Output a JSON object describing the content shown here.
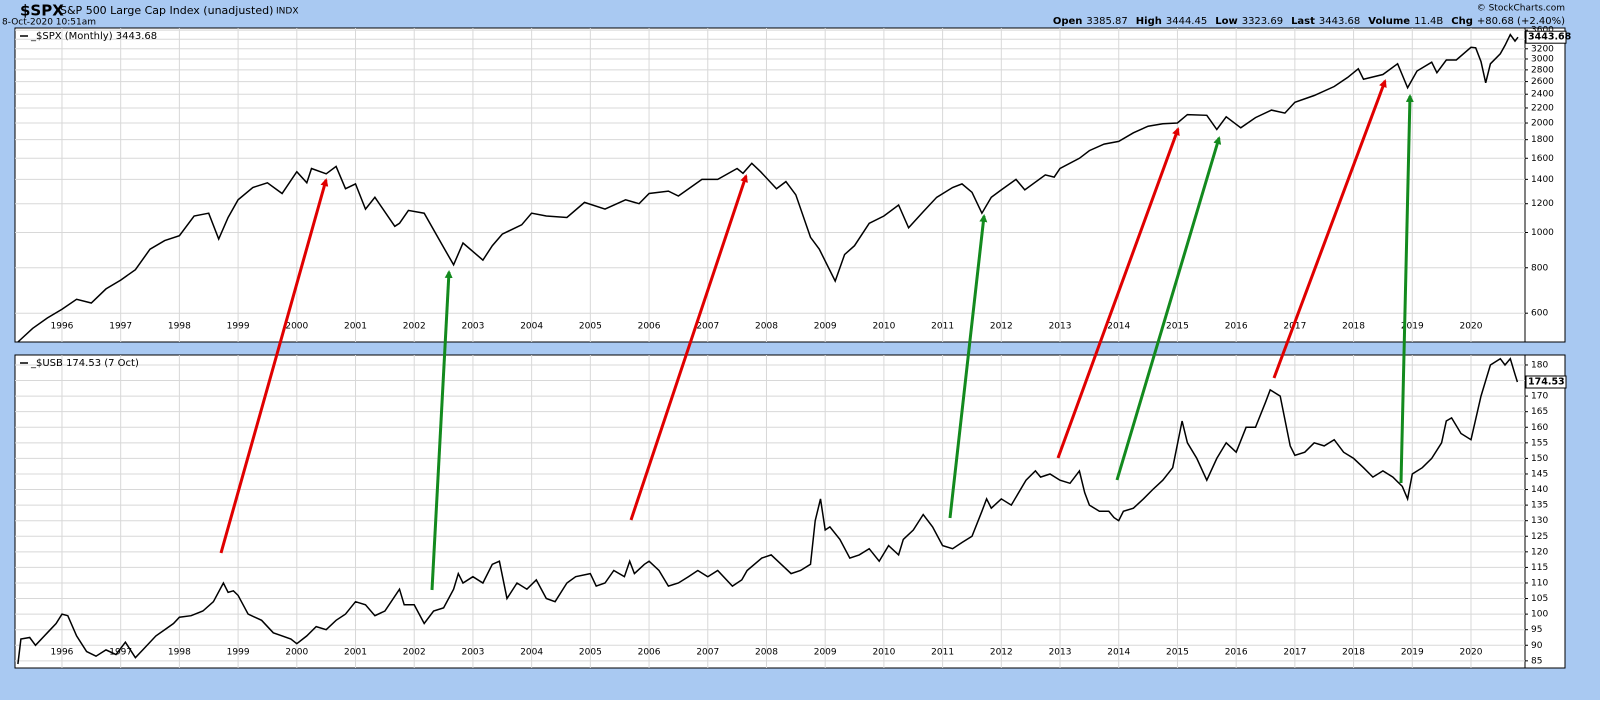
{
  "header": {
    "symbol": "$SPX",
    "name": "S&P 500 Large Cap Index (unadjusted)",
    "exchange": "INDX",
    "date": "8-Oct-2020 10:51am",
    "credit": "© StockCharts.com",
    "quote": [
      {
        "label": "Open",
        "value": "3385.87"
      },
      {
        "label": "High",
        "value": "3444.45"
      },
      {
        "label": "Low",
        "value": "3323.69"
      },
      {
        "label": "Last",
        "value": "3443.68"
      },
      {
        "label": "Volume",
        "value": "11.4B"
      },
      {
        "label": "Chg",
        "value": "+80.68 (+2.40%)"
      }
    ]
  },
  "chart_data": [
    {
      "type": "line",
      "log_scale": true,
      "grid": true,
      "last_value": 3443.68,
      "xlim": [
        1995.2,
        2020.92
      ],
      "xticks": [
        1996,
        1997,
        1998,
        1999,
        2000,
        2001,
        2002,
        2003,
        2004,
        2005,
        2006,
        2007,
        2008,
        2009,
        2010,
        2011,
        2012,
        2013,
        2014,
        2015,
        2016,
        2017,
        2018,
        2019,
        2020
      ],
      "ylim": [
        500,
        3650
      ],
      "yticks": [
        600,
        800,
        1000,
        1200,
        1400,
        1600,
        1800,
        2000,
        2200,
        2400,
        2600,
        2800,
        3000,
        3200,
        3400,
        3600
      ],
      "x": [
        1995.25,
        1995.5,
        1995.75,
        1996.0,
        1996.25,
        1996.5,
        1996.75,
        1997.0,
        1997.25,
        1997.5,
        1997.75,
        1998.0,
        1998.25,
        1998.5,
        1998.67,
        1998.83,
        1999.0,
        1999.25,
        1999.5,
        1999.75,
        2000.0,
        2000.17,
        2000.25,
        2000.5,
        2000.67,
        2000.83,
        2001.0,
        2001.17,
        2001.33,
        2001.67,
        2001.75,
        2001.9,
        2002.17,
        2002.5,
        2002.67,
        2002.83,
        2003.17,
        2003.33,
        2003.5,
        2003.83,
        2004.0,
        2004.25,
        2004.6,
        2004.9,
        2005.25,
        2005.6,
        2005.83,
        2006.0,
        2006.33,
        2006.5,
        2006.9,
        2007.17,
        2007.5,
        2007.6,
        2007.75,
        2007.9,
        2008.17,
        2008.33,
        2008.5,
        2008.75,
        2008.9,
        2009.17,
        2009.33,
        2009.5,
        2009.75,
        2010.0,
        2010.25,
        2010.42,
        2010.67,
        2010.9,
        2011.17,
        2011.33,
        2011.5,
        2011.67,
        2011.83,
        2012.0,
        2012.25,
        2012.4,
        2012.75,
        2012.9,
        2013.0,
        2013.33,
        2013.5,
        2013.75,
        2014.0,
        2014.25,
        2014.5,
        2014.75,
        2015.0,
        2015.17,
        2015.5,
        2015.67,
        2015.83,
        2016.08,
        2016.33,
        2016.6,
        2016.83,
        2017.0,
        2017.33,
        2017.67,
        2017.9,
        2018.08,
        2018.17,
        2018.5,
        2018.75,
        2018.83,
        2018.92,
        2019.08,
        2019.33,
        2019.42,
        2019.58,
        2019.75,
        2020.0,
        2020.08,
        2020.17,
        2020.25,
        2020.33,
        2020.5,
        2020.58,
        2020.67,
        2020.75,
        2020.8
      ],
      "series": [
        {
          "name": "_$SPX (Monthly) 3443.68",
          "color": "#000000",
          "values": [
            500,
            545,
            582,
            615,
            655,
            640,
            700,
            740,
            790,
            900,
            950,
            980,
            1110,
            1130,
            960,
            1100,
            1230,
            1330,
            1370,
            1280,
            1470,
            1370,
            1500,
            1450,
            1520,
            1320,
            1360,
            1160,
            1250,
            1040,
            1060,
            1150,
            1130,
            910,
            815,
            936,
            840,
            920,
            990,
            1050,
            1130,
            1110,
            1100,
            1210,
            1160,
            1230,
            1200,
            1280,
            1300,
            1260,
            1400,
            1400,
            1500,
            1455,
            1550,
            1470,
            1320,
            1380,
            1270,
            970,
            900,
            735,
            870,
            920,
            1060,
            1110,
            1190,
            1030,
            1140,
            1250,
            1330,
            1360,
            1290,
            1130,
            1250,
            1310,
            1400,
            1310,
            1440,
            1420,
            1500,
            1600,
            1680,
            1750,
            1780,
            1880,
            1960,
            1990,
            2000,
            2110,
            2100,
            1920,
            2080,
            1940,
            2070,
            2170,
            2130,
            2280,
            2380,
            2520,
            2670,
            2820,
            2640,
            2720,
            2910,
            2710,
            2500,
            2780,
            2940,
            2750,
            2980,
            2980,
            3230,
            3220,
            2950,
            2580,
            2910,
            3100,
            3270,
            3500,
            3360,
            3443.68
          ]
        }
      ]
    },
    {
      "type": "line",
      "log_scale": false,
      "grid": true,
      "last_value": 174.53,
      "xlim": [
        1995.2,
        2020.92
      ],
      "xticks": [
        1996,
        1997,
        1998,
        1999,
        2000,
        2001,
        2002,
        2003,
        2004,
        2005,
        2006,
        2007,
        2008,
        2009,
        2010,
        2011,
        2012,
        2013,
        2014,
        2015,
        2016,
        2017,
        2018,
        2019,
        2020
      ],
      "ylim": [
        82.7,
        183.2
      ],
      "yticks": [
        85,
        90,
        95,
        100,
        105,
        110,
        115,
        120,
        125,
        130,
        135,
        140,
        145,
        150,
        155,
        160,
        165,
        170,
        175,
        180
      ],
      "x": [
        1995.25,
        1995.3,
        1995.45,
        1995.55,
        1995.75,
        1995.9,
        1996.0,
        1996.1,
        1996.25,
        1996.42,
        1996.58,
        1996.75,
        1996.92,
        1997.08,
        1997.25,
        1997.4,
        1997.6,
        1997.75,
        1997.9,
        1998.0,
        1998.2,
        1998.4,
        1998.58,
        1998.75,
        1998.83,
        1998.92,
        1999.0,
        1999.17,
        1999.4,
        1999.6,
        1999.9,
        2000.0,
        2000.17,
        2000.33,
        2000.5,
        2000.67,
        2000.83,
        2001.0,
        2001.17,
        2001.33,
        2001.5,
        2001.75,
        2001.83,
        2002.0,
        2002.17,
        2002.33,
        2002.5,
        2002.67,
        2002.75,
        2002.83,
        2003.0,
        2003.17,
        2003.33,
        2003.45,
        2003.58,
        2003.75,
        2003.92,
        2004.08,
        2004.25,
        2004.4,
        2004.6,
        2004.75,
        2005.0,
        2005.1,
        2005.25,
        2005.4,
        2005.58,
        2005.67,
        2005.75,
        2005.92,
        2006.0,
        2006.17,
        2006.33,
        2006.5,
        2006.67,
        2006.83,
        2007.0,
        2007.17,
        2007.42,
        2007.58,
        2007.67,
        2007.92,
        2008.08,
        2008.25,
        2008.42,
        2008.58,
        2008.75,
        2008.83,
        2008.92,
        2009.0,
        2009.08,
        2009.25,
        2009.42,
        2009.58,
        2009.75,
        2009.92,
        2010.08,
        2010.25,
        2010.33,
        2010.5,
        2010.67,
        2010.83,
        2011.0,
        2011.17,
        2011.33,
        2011.5,
        2011.67,
        2011.75,
        2011.83,
        2012.0,
        2012.17,
        2012.42,
        2012.58,
        2012.67,
        2012.83,
        2013.0,
        2013.17,
        2013.33,
        2013.42,
        2013.5,
        2013.67,
        2013.83,
        2013.92,
        2014.0,
        2014.08,
        2014.25,
        2014.42,
        2014.58,
        2014.75,
        2014.92,
        2015.08,
        2015.17,
        2015.33,
        2015.5,
        2015.67,
        2015.83,
        2016.0,
        2016.17,
        2016.33,
        2016.5,
        2016.58,
        2016.75,
        2016.92,
        2017.0,
        2017.17,
        2017.33,
        2017.5,
        2017.67,
        2017.83,
        2018.0,
        2018.17,
        2018.33,
        2018.5,
        2018.67,
        2018.83,
        2018.92,
        2019.0,
        2019.17,
        2019.33,
        2019.5,
        2019.58,
        2019.67,
        2019.83,
        2020.0,
        2020.17,
        2020.33,
        2020.5,
        2020.58,
        2020.67,
        2020.75,
        2020.79
      ],
      "series": [
        {
          "name": "_$USB 174.53 (7 Oct)",
          "color": "#000000",
          "values": [
            84,
            92,
            92.5,
            90,
            94,
            97,
            100,
            99.5,
            93,
            88,
            86.5,
            88.5,
            87,
            91,
            86,
            89,
            93,
            95,
            97,
            99,
            99.5,
            101,
            104,
            110,
            107,
            107.5,
            106,
            100,
            98,
            94,
            92,
            90.5,
            93,
            96,
            95,
            98,
            100,
            104,
            103,
            99.5,
            101,
            108,
            103,
            103,
            97,
            101,
            102,
            108,
            113,
            110,
            112,
            110,
            116,
            117,
            105,
            110,
            108,
            111,
            105,
            104,
            110,
            112,
            113,
            109,
            110,
            114,
            112,
            117,
            113,
            116,
            117,
            114,
            109,
            110,
            112,
            114,
            112,
            114,
            109,
            111,
            114,
            118,
            119,
            116,
            113,
            114,
            116,
            130,
            137,
            127,
            128,
            124,
            118,
            119,
            121,
            117,
            122,
            119,
            124,
            127,
            132,
            128,
            122,
            121,
            123,
            125,
            133,
            137,
            134,
            137,
            135,
            143,
            146,
            144,
            145,
            143,
            142,
            146,
            139,
            135,
            133,
            133,
            131,
            130,
            133,
            134,
            137,
            140,
            143,
            147,
            162,
            155,
            150,
            143,
            150,
            155,
            152,
            160,
            160,
            168,
            172,
            170,
            154,
            151,
            152,
            155,
            154,
            156,
            152,
            150,
            147,
            144,
            146,
            144,
            141,
            137,
            145,
            147,
            150,
            155,
            162,
            163,
            158,
            156,
            170,
            180,
            182,
            180,
            182,
            177,
            174.53
          ]
        }
      ]
    }
  ]
}
